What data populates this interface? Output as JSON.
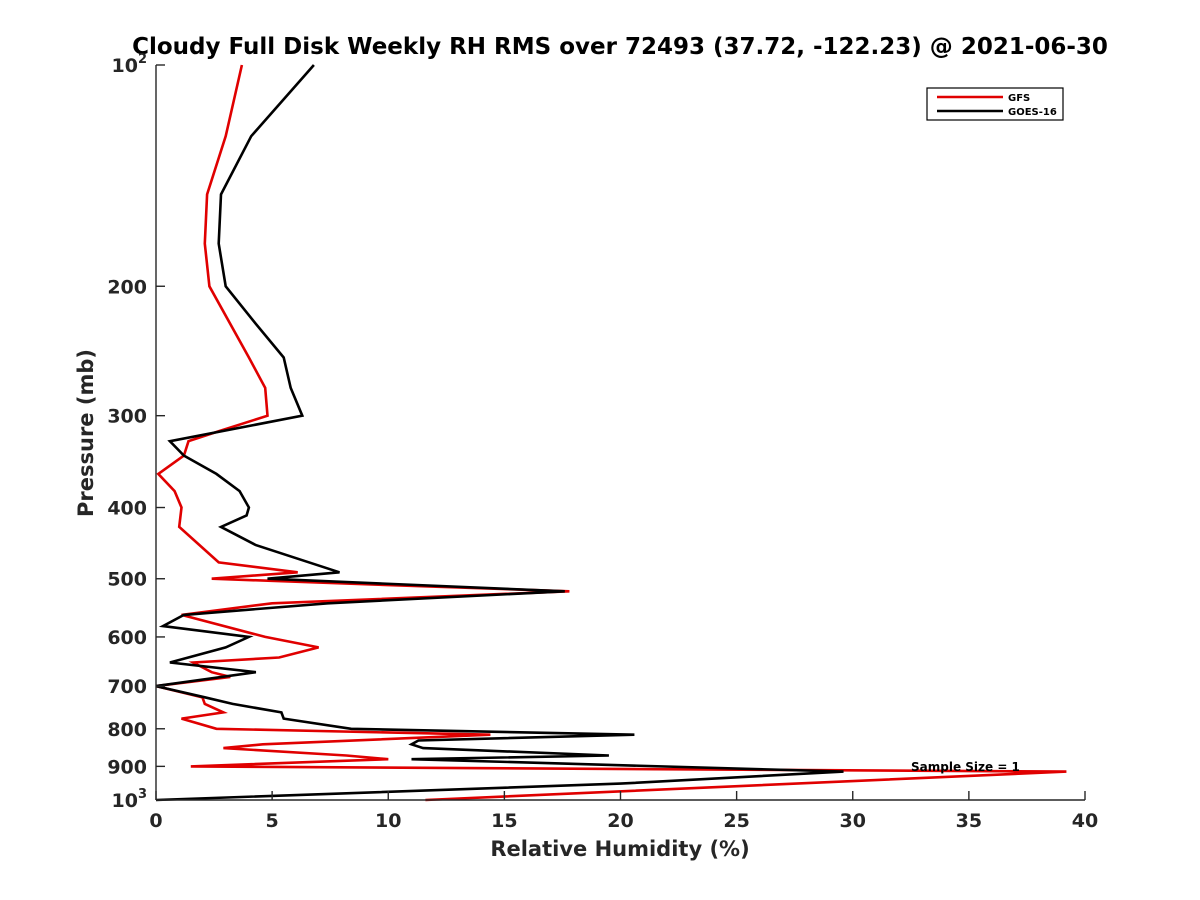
{
  "chart_data": {
    "type": "line",
    "title": "Cloudy Full Disk Weekly RH RMS over 72493 (37.72, -122.23) @ 2021-06-30",
    "xlabel": "Relative Humidity (%)",
    "ylabel": "Pressure (mb)",
    "xlim": [
      0,
      40
    ],
    "ylim": [
      100,
      1000
    ],
    "y_scale": "log",
    "y_reversed": true,
    "grid": false,
    "legend_position": "top-right",
    "x_ticks": [
      "0",
      "5",
      "10",
      "15",
      "20",
      "25",
      "30",
      "35",
      "40"
    ],
    "y_ticks": [
      {
        "value": 100,
        "base": "10",
        "exp": "2"
      },
      {
        "value": 200,
        "base": "200",
        "exp": ""
      },
      {
        "value": 300,
        "base": "300",
        "exp": ""
      },
      {
        "value": 400,
        "base": "400",
        "exp": ""
      },
      {
        "value": 500,
        "base": "500",
        "exp": ""
      },
      {
        "value": 600,
        "base": "600",
        "exp": ""
      },
      {
        "value": 700,
        "base": "700",
        "exp": ""
      },
      {
        "value": 800,
        "base": "800",
        "exp": ""
      },
      {
        "value": 900,
        "base": "900",
        "exp": ""
      },
      {
        "value": 1000,
        "base": "10",
        "exp": "3"
      }
    ],
    "annotation": "Sample Size = 1",
    "series": [
      {
        "name": "GFS",
        "color": "#e00000",
        "points": [
          [
            3.7,
            100
          ],
          [
            3.0,
            125
          ],
          [
            2.2,
            150
          ],
          [
            2.1,
            175
          ],
          [
            2.3,
            200
          ],
          [
            4.0,
            250
          ],
          [
            4.7,
            275
          ],
          [
            4.8,
            300
          ],
          [
            2.7,
            315
          ],
          [
            1.4,
            325
          ],
          [
            1.2,
            340
          ],
          [
            0.1,
            360
          ],
          [
            0.8,
            380
          ],
          [
            1.1,
            400
          ],
          [
            1.0,
            425
          ],
          [
            2.7,
            475
          ],
          [
            6.1,
            490
          ],
          [
            2.4,
            500
          ],
          [
            10.0,
            510
          ],
          [
            17.8,
            520
          ],
          [
            5.0,
            540
          ],
          [
            1.1,
            560
          ],
          [
            4.7,
            600
          ],
          [
            7.0,
            620
          ],
          [
            5.3,
            640
          ],
          [
            1.6,
            650
          ],
          [
            2.4,
            670
          ],
          [
            3.2,
            680
          ],
          [
            0.0,
            700
          ],
          [
            2.0,
            725
          ],
          [
            2.1,
            740
          ],
          [
            2.9,
            760
          ],
          [
            1.1,
            775
          ],
          [
            2.6,
            800
          ],
          [
            14.4,
            815
          ],
          [
            4.6,
            840
          ],
          [
            2.9,
            850
          ],
          [
            8.2,
            870
          ],
          [
            10.0,
            880
          ],
          [
            1.5,
            900
          ],
          [
            39.2,
            915
          ],
          [
            11.6,
            1000
          ]
        ]
      },
      {
        "name": "GOES-16",
        "color": "#000000",
        "points": [
          [
            6.8,
            100
          ],
          [
            4.1,
            125
          ],
          [
            2.8,
            150
          ],
          [
            2.7,
            175
          ],
          [
            3.0,
            200
          ],
          [
            4.3,
            225
          ],
          [
            5.5,
            250
          ],
          [
            5.8,
            275
          ],
          [
            6.3,
            300
          ],
          [
            0.6,
            325
          ],
          [
            1.2,
            340
          ],
          [
            2.6,
            360
          ],
          [
            3.6,
            380
          ],
          [
            4.0,
            400
          ],
          [
            3.9,
            410
          ],
          [
            2.8,
            425
          ],
          [
            4.3,
            450
          ],
          [
            7.9,
            490
          ],
          [
            4.8,
            500
          ],
          [
            17.6,
            520
          ],
          [
            7.4,
            540
          ],
          [
            1.2,
            560
          ],
          [
            0.3,
            580
          ],
          [
            4.0,
            600
          ],
          [
            3.0,
            620
          ],
          [
            0.6,
            650
          ],
          [
            4.3,
            670
          ],
          [
            0.0,
            700
          ],
          [
            2.1,
            725
          ],
          [
            3.3,
            740
          ],
          [
            5.4,
            760
          ],
          [
            5.5,
            775
          ],
          [
            8.4,
            800
          ],
          [
            20.6,
            815
          ],
          [
            11.3,
            830
          ],
          [
            11.0,
            840
          ],
          [
            11.5,
            850
          ],
          [
            19.5,
            870
          ],
          [
            11.0,
            880
          ],
          [
            29.6,
            915
          ],
          [
            20.0,
            950
          ],
          [
            0.0,
            1000
          ]
        ]
      }
    ]
  }
}
